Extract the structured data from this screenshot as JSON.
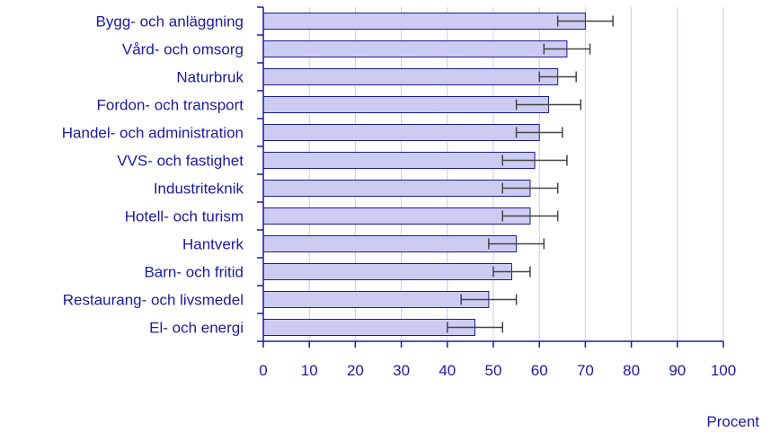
{
  "chart_data": {
    "type": "bar",
    "orientation": "horizontal",
    "categories": [
      "Bygg- och anläggning",
      "Vård- och omsorg",
      "Naturbruk",
      "Fordon- och transport",
      "Handel- och administration",
      "VVS- och fastighet",
      "Industriteknik",
      "Hotell- och turism",
      "Hantverk",
      "Barn- och fritid",
      "Restaurang- och livsmedel",
      "El- och energi"
    ],
    "values": [
      70,
      66,
      64,
      62,
      60,
      59,
      58,
      58,
      55,
      54,
      49,
      46
    ],
    "error_low": [
      64,
      61,
      60,
      55,
      55,
      52,
      52,
      52,
      49,
      50,
      43,
      40
    ],
    "error_high": [
      76,
      71,
      68,
      69,
      65,
      66,
      64,
      64,
      61,
      58,
      55,
      52
    ],
    "xlim": [
      0,
      100
    ],
    "xticks": [
      "0",
      "10",
      "20",
      "30",
      "40",
      "50",
      "60",
      "70",
      "80",
      "90",
      "100"
    ],
    "xlabel": "Procent",
    "grid": "vertical",
    "colors": {
      "bar_fill": "#ccccf2",
      "bar_stroke": "#1a1a9c",
      "axis": "#1a1aa8",
      "grid": "#c8c8ee",
      "error_bar": "#444444",
      "text": "#1a1aa8"
    }
  }
}
